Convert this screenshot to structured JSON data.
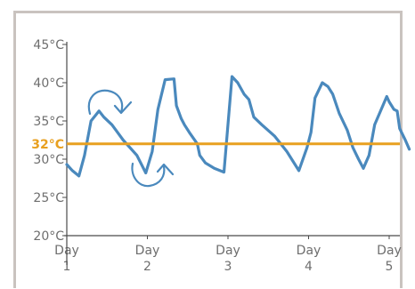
{
  "chart_data": {
    "type": "line",
    "title": "",
    "xlabel": "",
    "ylabel": "",
    "ylim": [
      20,
      47
    ],
    "y_ticks": [
      "45°C",
      "40°C",
      "35°C",
      "30°C",
      "25°C",
      "20°C"
    ],
    "y_tick_values": [
      45,
      40,
      35,
      30,
      25,
      20
    ],
    "x_ticks": [
      {
        "value": 1,
        "line1": "Day",
        "line2": "1"
      },
      {
        "value": 2,
        "line1": "Day",
        "line2": "2"
      },
      {
        "value": 3,
        "line1": "Day",
        "line2": "3"
      },
      {
        "value": 4,
        "line1": "Day",
        "line2": "4"
      },
      {
        "value": 5,
        "line1": "Day",
        "line2": "5"
      }
    ],
    "xlim": [
      1,
      5.05
    ],
    "reference_line": {
      "value": 32,
      "label": "32°C",
      "color": "#e8a020"
    },
    "series_color": "#4a89bd",
    "axis_color": "#4a4a4a",
    "series": [
      {
        "x": [
          1.0,
          1.07,
          1.15,
          1.22,
          1.3,
          1.4,
          1.46,
          1.56,
          1.7,
          1.87,
          1.98,
          2.06,
          2.13,
          2.22,
          2.33,
          2.36,
          2.42,
          2.46,
          2.52,
          2.62,
          2.65,
          2.72,
          2.83,
          2.95,
          3.05,
          3.12,
          3.2,
          3.26,
          3.32,
          3.42,
          3.58,
          3.73,
          3.88,
          3.98,
          4.03,
          4.08,
          4.17,
          4.24,
          4.3,
          4.38,
          4.48,
          4.55,
          4.62,
          4.68,
          4.75,
          4.82,
          4.97,
          5.0,
          5.06,
          5.1
        ],
        "y": [
          29.3,
          28.5,
          27.8,
          30.5,
          35.0,
          36.3,
          35.5,
          34.5,
          32.5,
          30.5,
          28.2,
          31.0,
          36.5,
          40.4,
          40.5,
          37.0,
          35.3,
          34.5,
          33.5,
          32.0,
          30.5,
          29.5,
          28.8,
          28.3,
          40.8,
          40.0,
          38.5,
          37.8,
          35.5,
          34.5,
          33.0,
          31.0,
          28.5,
          31.5,
          33.5,
          38.0,
          40.0,
          39.5,
          38.5,
          36.0,
          33.8,
          31.5,
          30.0,
          28.8,
          30.5,
          34.5,
          38.2,
          37.5,
          36.5,
          36.3
        ]
      }
    ],
    "tail": {
      "x": [
        5.1,
        5.13,
        5.2,
        5.25
      ],
      "y": [
        36.3,
        34.0,
        32.5,
        31.3
      ]
    },
    "annotations": [
      {
        "type": "arc-arrow",
        "direction": "clockwise-top"
      },
      {
        "type": "arc-arrow",
        "direction": "counterclockwise-bottom"
      }
    ]
  }
}
